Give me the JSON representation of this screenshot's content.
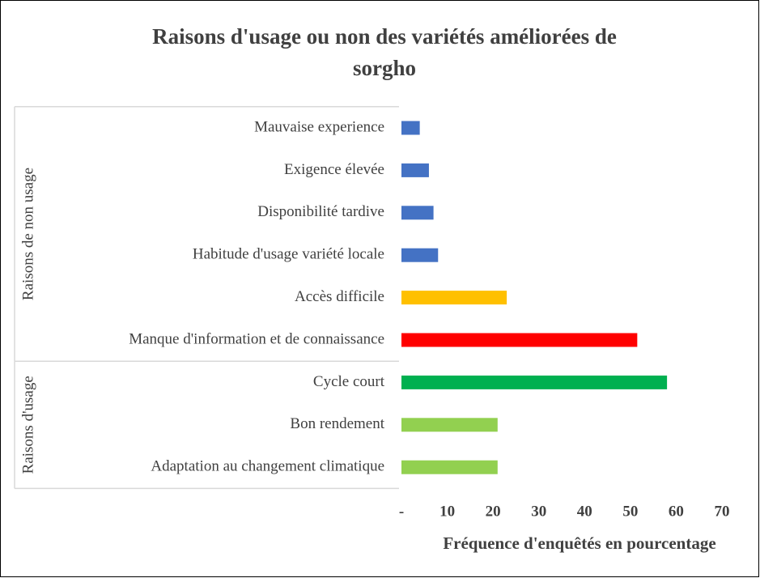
{
  "chart_data": {
    "type": "hbar",
    "title": [
      "Raisons d'usage ou non des variétés améliorées de",
      "sorgho"
    ],
    "x_label": "Fréquence d'enquêtés en pourcentage",
    "categories": [
      "Mauvaise experience",
      "Exigence élevée",
      "Disponibilité tardive",
      "Habitude d'usage variété locale",
      "Accès difficile",
      "Manque d'information et de connaissance",
      "Cycle court",
      "Bon rendement",
      "Adaptation au changement climatique"
    ],
    "values": [
      4,
      6,
      7,
      8,
      23,
      51.5,
      58,
      21,
      21
    ],
    "colors": [
      "#4472c4",
      "#4472c4",
      "#4472c4",
      "#4472c4",
      "#ffc000",
      "#ff0000",
      "#00b050",
      "#92d050",
      "#92d050"
    ],
    "groups": [
      {
        "name": "Raisons de non usage",
        "size": 6
      },
      {
        "name": "Raisons d'usage",
        "size": 3
      }
    ],
    "xlim": [
      0,
      70
    ],
    "xticks": [
      {
        "value": 0,
        "label": "-"
      },
      10,
      20,
      30,
      40,
      50,
      60,
      70
    ],
    "grid": false
  }
}
